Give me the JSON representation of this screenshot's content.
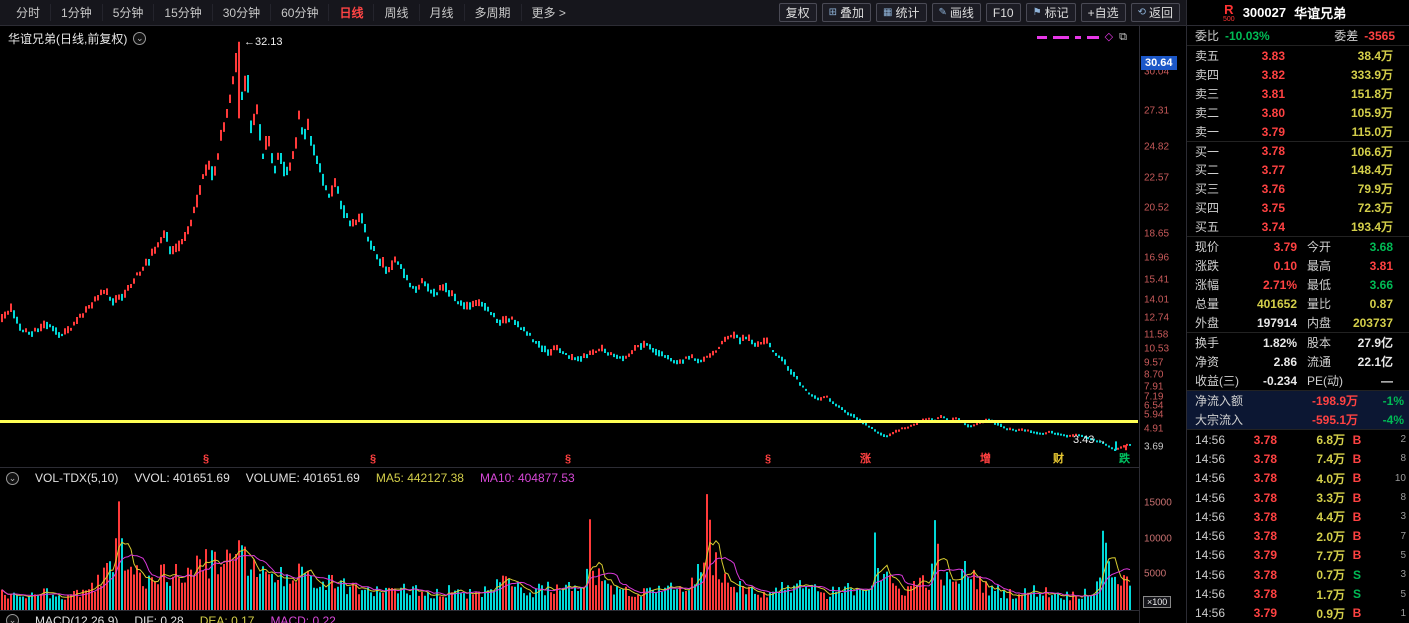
{
  "toolbar": {
    "periods": [
      {
        "key": "fenshi",
        "label": "分时"
      },
      {
        "key": "1min",
        "label": "1分钟"
      },
      {
        "key": "5min",
        "label": "5分钟"
      },
      {
        "key": "15min",
        "label": "15分钟"
      },
      {
        "key": "30min",
        "label": "30分钟"
      },
      {
        "key": "60min",
        "label": "60分钟"
      },
      {
        "key": "daily",
        "label": "日线"
      },
      {
        "key": "weekly",
        "label": "周线"
      },
      {
        "key": "monthly",
        "label": "月线"
      },
      {
        "key": "multi",
        "label": "多周期"
      },
      {
        "key": "more",
        "label": "更多 >"
      }
    ],
    "active_period": "日线",
    "right_buttons": [
      {
        "key": "fuquan",
        "label": "复权"
      },
      {
        "key": "overlay",
        "label": "叠加",
        "icon": "⊞",
        "icon_name": "overlay-icon"
      },
      {
        "key": "stats",
        "label": "统计",
        "icon": "▦",
        "icon_name": "stats-icon"
      },
      {
        "key": "drawline",
        "label": "画线",
        "icon": "✎",
        "icon_name": "draw-line-icon"
      },
      {
        "key": "f10",
        "label": "F10"
      },
      {
        "key": "mark",
        "label": "标记",
        "icon": "⚑",
        "icon_name": "mark-icon"
      },
      {
        "key": "add-watch",
        "label": "+自选"
      },
      {
        "key": "back",
        "label": "返回",
        "icon": "⟲",
        "icon_name": "back-icon"
      }
    ]
  },
  "icons": {
    "collapse": "⌄"
  },
  "chart": {
    "title": "华谊兄弟(日线,前复权)",
    "max_badge": "30.64",
    "peak_label": "←32.13",
    "low_label": "3.43",
    "low_arrow": "→",
    "deco_diamond": "◇",
    "deco_panel": "⧉",
    "volume_header": {
      "name": "VOL-TDX(5,10)",
      "vvol": "VVOL: 401651.69",
      "volume": "VOLUME: 401651.69",
      "ma5": "MA5: 442127.38",
      "ma10": "MA10: 404877.53"
    },
    "macd_row": {
      "name": "MACD(12,26,9)",
      "dif": "DIF: 0.28",
      "dea": "DEA: 0.17",
      "macd": "MACD: 0.22"
    },
    "volume_unit": "×100"
  },
  "colors": {
    "up": "#ff3a3a",
    "down": "#00d8d8",
    "ma5": "#d8cc30",
    "ma10": "#d838d8",
    "trendline": "#ffff55",
    "axis_label": "#c85a5a",
    "badge_blue": "#1b57c8",
    "buy": "#ff4040",
    "sell": "#00c060",
    "yellow": "#d4cf4a",
    "green": "#00bb55",
    "red": "#ff4242",
    "flow_bg": "#0c1733"
  },
  "chart_data": {
    "type": "candlestick",
    "symbol": "300027",
    "name": "华谊兄弟",
    "period": "日线",
    "adjust": "前复权",
    "y_axis": {
      "top": 32.6,
      "bottom": 3.3,
      "prev_close": 3.69,
      "max_badge": 30.64,
      "labels": [
        30.04,
        27.31,
        24.82,
        22.57,
        20.52,
        18.65,
        16.96,
        15.41,
        14.01,
        12.74,
        11.58,
        10.53,
        9.57,
        8.7,
        7.91,
        7.19,
        6.54,
        5.94,
        4.91,
        3.69
      ]
    },
    "annotations": {
      "peak": 32.13,
      "last_low": 3.43,
      "end_price": 3.79,
      "trendline_price": 5.45
    },
    "price_keypoints": [
      [
        0,
        12.6
      ],
      [
        0.01,
        13.4
      ],
      [
        0.018,
        12
      ],
      [
        0.028,
        11.6
      ],
      [
        0.04,
        12.4
      ],
      [
        0.052,
        11.5
      ],
      [
        0.062,
        12
      ],
      [
        0.072,
        12.9
      ],
      [
        0.082,
        13.8
      ],
      [
        0.092,
        14.7
      ],
      [
        0.1,
        13.9
      ],
      [
        0.11,
        14.4
      ],
      [
        0.12,
        15.7
      ],
      [
        0.13,
        16.6
      ],
      [
        0.138,
        17.8
      ],
      [
        0.146,
        18.6
      ],
      [
        0.152,
        17.3
      ],
      [
        0.16,
        18
      ],
      [
        0.168,
        19.4
      ],
      [
        0.176,
        21.6
      ],
      [
        0.184,
        23.9
      ],
      [
        0.189,
        22.4
      ],
      [
        0.195,
        25.3
      ],
      [
        0.202,
        27.9
      ],
      [
        0.207,
        30.3
      ],
      [
        0.211,
        32.13
      ],
      [
        0.214,
        28.4
      ],
      [
        0.218,
        30.1
      ],
      [
        0.222,
        25.8
      ],
      [
        0.227,
        27.5
      ],
      [
        0.232,
        24.1
      ],
      [
        0.237,
        25.7
      ],
      [
        0.242,
        23.1
      ],
      [
        0.247,
        24.4
      ],
      [
        0.252,
        22.7
      ],
      [
        0.257,
        23.8
      ],
      [
        0.262,
        25.3
      ],
      [
        0.264,
        26.8
      ],
      [
        0.268,
        25.6
      ],
      [
        0.272,
        26.4
      ],
      [
        0.277,
        24.5
      ],
      [
        0.283,
        23
      ],
      [
        0.29,
        21.4
      ],
      [
        0.296,
        22.3
      ],
      [
        0.302,
        20.6
      ],
      [
        0.31,
        19.2
      ],
      [
        0.318,
        20
      ],
      [
        0.326,
        18.3
      ],
      [
        0.334,
        17
      ],
      [
        0.342,
        16.1
      ],
      [
        0.35,
        16.9
      ],
      [
        0.358,
        15.7
      ],
      [
        0.366,
        14.7
      ],
      [
        0.374,
        15.3
      ],
      [
        0.382,
        14.3
      ],
      [
        0.392,
        15
      ],
      [
        0.402,
        14.1
      ],
      [
        0.412,
        13.6
      ],
      [
        0.422,
        14
      ],
      [
        0.432,
        13.2
      ],
      [
        0.442,
        12.4
      ],
      [
        0.452,
        12.8
      ],
      [
        0.46,
        12.1
      ],
      [
        0.468,
        11.5
      ],
      [
        0.476,
        10.8
      ],
      [
        0.484,
        10.3
      ],
      [
        0.492,
        10.7
      ],
      [
        0.5,
        10.1
      ],
      [
        0.51,
        9.8
      ],
      [
        0.52,
        10.2
      ],
      [
        0.53,
        10.6
      ],
      [
        0.54,
        10.2
      ],
      [
        0.55,
        9.8
      ],
      [
        0.56,
        10.5
      ],
      [
        0.57,
        10.9
      ],
      [
        0.58,
        10.4
      ],
      [
        0.59,
        9.9
      ],
      [
        0.6,
        9.6
      ],
      [
        0.61,
        10.1
      ],
      [
        0.618,
        9.7
      ],
      [
        0.626,
        10
      ],
      [
        0.634,
        10.6
      ],
      [
        0.641,
        11.2
      ],
      [
        0.648,
        11.6
      ],
      [
        0.654,
        11.1
      ],
      [
        0.66,
        11.5
      ],
      [
        0.668,
        10.8
      ],
      [
        0.676,
        11.2
      ],
      [
        0.684,
        10.4
      ],
      [
        0.692,
        9.7
      ],
      [
        0.7,
        8.9
      ],
      [
        0.708,
        8
      ],
      [
        0.716,
        7.4
      ],
      [
        0.724,
        7
      ],
      [
        0.73,
        7.3
      ],
      [
        0.736,
        6.8
      ],
      [
        0.744,
        6.3
      ],
      [
        0.752,
        5.9
      ],
      [
        0.76,
        5.5
      ],
      [
        0.768,
        5.1
      ],
      [
        0.776,
        4.7
      ],
      [
        0.782,
        4.4
      ],
      [
        0.788,
        4.6
      ],
      [
        0.796,
        4.9
      ],
      [
        0.804,
        5.1
      ],
      [
        0.812,
        5.4
      ],
      [
        0.82,
        5.7
      ],
      [
        0.826,
        5.5
      ],
      [
        0.832,
        5.8
      ],
      [
        0.838,
        5.5
      ],
      [
        0.846,
        5.7
      ],
      [
        0.852,
        5.3
      ],
      [
        0.858,
        5.1
      ],
      [
        0.866,
        5.4
      ],
      [
        0.874,
        5.6
      ],
      [
        0.88,
        5.3
      ],
      [
        0.888,
        5
      ],
      [
        0.896,
        4.8
      ],
      [
        0.904,
        4.9
      ],
      [
        0.912,
        4.7
      ],
      [
        0.92,
        4.6
      ],
      [
        0.928,
        4.7
      ],
      [
        0.936,
        4.5
      ],
      [
        0.944,
        4.4
      ],
      [
        0.952,
        4.5
      ],
      [
        0.96,
        4.3
      ],
      [
        0.968,
        4.1
      ],
      [
        0.976,
        3.9
      ],
      [
        0.982,
        3.55
      ],
      [
        0.986,
        3.43
      ],
      [
        0.991,
        3.65
      ],
      [
        0.995,
        3.79
      ]
    ],
    "volume": {
      "axis_values": [
        15000,
        10000,
        5000
      ],
      "unit": "×100",
      "keypoints": [
        [
          0,
          2200
        ],
        [
          0.02,
          1700
        ],
        [
          0.04,
          2500
        ],
        [
          0.06,
          1900
        ],
        [
          0.08,
          3100
        ],
        [
          0.095,
          5000
        ],
        [
          0.101,
          6500
        ],
        [
          0.105,
          15500
        ],
        [
          0.109,
          7000
        ],
        [
          0.118,
          5000
        ],
        [
          0.13,
          4100
        ],
        [
          0.15,
          5100
        ],
        [
          0.17,
          6100
        ],
        [
          0.19,
          6700
        ],
        [
          0.205,
          7500
        ],
        [
          0.212,
          8600
        ],
        [
          0.22,
          6900
        ],
        [
          0.235,
          5300
        ],
        [
          0.25,
          4500
        ],
        [
          0.265,
          5500
        ],
        [
          0.28,
          4300
        ],
        [
          0.3,
          3500
        ],
        [
          0.32,
          2950
        ],
        [
          0.34,
          2550
        ],
        [
          0.36,
          3150
        ],
        [
          0.38,
          2350
        ],
        [
          0.4,
          2750
        ],
        [
          0.42,
          2150
        ],
        [
          0.435,
          3300
        ],
        [
          0.442,
          3600
        ],
        [
          0.445,
          6800
        ],
        [
          0.449,
          3400
        ],
        [
          0.47,
          2550
        ],
        [
          0.49,
          3300
        ],
        [
          0.505,
          2950
        ],
        [
          0.517,
          3500
        ],
        [
          0.521,
          14000
        ],
        [
          0.525,
          5200
        ],
        [
          0.545,
          2950
        ],
        [
          0.56,
          2550
        ],
        [
          0.58,
          3300
        ],
        [
          0.6,
          2750
        ],
        [
          0.615,
          4700
        ],
        [
          0.622,
          5200
        ],
        [
          0.625,
          17200
        ],
        [
          0.629,
          7500
        ],
        [
          0.64,
          4500
        ],
        [
          0.66,
          2950
        ],
        [
          0.68,
          2350
        ],
        [
          0.7,
          3700
        ],
        [
          0.715,
          2950
        ],
        [
          0.73,
          2350
        ],
        [
          0.745,
          2750
        ],
        [
          0.76,
          3300
        ],
        [
          0.77,
          3600
        ],
        [
          0.773,
          11000
        ],
        [
          0.777,
          5000
        ],
        [
          0.79,
          3300
        ],
        [
          0.8,
          2750
        ],
        [
          0.815,
          4300
        ],
        [
          0.823,
          4200
        ],
        [
          0.826,
          12000
        ],
        [
          0.83,
          5500
        ],
        [
          0.84,
          3300
        ],
        [
          0.855,
          5700
        ],
        [
          0.87,
          3100
        ],
        [
          0.885,
          2550
        ],
        [
          0.9,
          2150
        ],
        [
          0.915,
          2750
        ],
        [
          0.93,
          2350
        ],
        [
          0.945,
          1950
        ],
        [
          0.96,
          2550
        ],
        [
          0.972,
          3400
        ],
        [
          0.975,
          13800
        ],
        [
          0.979,
          6000
        ],
        [
          0.99,
          4100
        ],
        [
          1,
          3700
        ]
      ]
    },
    "events": [
      {
        "glyph": "§",
        "color": "#ff4040",
        "x": 0.18
      },
      {
        "glyph": "§",
        "color": "#ff4040",
        "x": 0.327
      },
      {
        "glyph": "§",
        "color": "#ff4040",
        "x": 0.5
      },
      {
        "glyph": "§",
        "color": "#ff4040",
        "x": 0.677
      },
      {
        "glyph": "涨",
        "color": "#ff4040",
        "x": 0.761
      },
      {
        "glyph": "增",
        "color": "#ff4040",
        "x": 0.867
      },
      {
        "glyph": "财",
        "color": "#e8c832",
        "x": 0.932
      },
      {
        "glyph": "跌",
        "color": "#00c060",
        "x": 0.99
      }
    ]
  },
  "quote": {
    "flag": "R",
    "flag_sub": "500",
    "code": "300027",
    "name": "华谊兄弟",
    "weibi_label": "委比",
    "weibi": "-10.03%",
    "weicha_label": "委差",
    "weicha": "-3565",
    "asks": [
      [
        "卖五",
        "3.83",
        "38.4万"
      ],
      [
        "卖四",
        "3.82",
        "333.9万"
      ],
      [
        "卖三",
        "3.81",
        "151.8万"
      ],
      [
        "卖二",
        "3.80",
        "105.9万"
      ],
      [
        "卖一",
        "3.79",
        "115.0万"
      ]
    ],
    "bids": [
      [
        "买一",
        "3.78",
        "106.6万"
      ],
      [
        "买二",
        "3.77",
        "148.4万"
      ],
      [
        "买三",
        "3.76",
        "79.9万"
      ],
      [
        "买四",
        "3.75",
        "72.3万"
      ],
      [
        "买五",
        "3.74",
        "193.4万"
      ]
    ],
    "stats": [
      {
        "l1": "现价",
        "v1": "3.79",
        "c1": "red",
        "l2": "今开",
        "v2": "3.68",
        "c2": "green"
      },
      {
        "l1": "涨跌",
        "v1": "0.10",
        "c1": "red",
        "l2": "最高",
        "v2": "3.81",
        "c2": "red"
      },
      {
        "l1": "涨幅",
        "v1": "2.71%",
        "c1": "red",
        "l2": "最低",
        "v2": "3.66",
        "c2": "green"
      },
      {
        "l1": "总量",
        "v1": "401652",
        "c1": "yellow",
        "l2": "量比",
        "v2": "0.87",
        "c2": "yellow"
      },
      {
        "l1": "外盘",
        "v1": "197914",
        "c1": "white",
        "l2": "内盘",
        "v2": "203737",
        "c2": "yellow"
      },
      {
        "l1": "换手",
        "v1": "1.82%",
        "c1": "white",
        "l2": "股本",
        "v2": "27.9亿",
        "c2": "white"
      },
      {
        "l1": "净资",
        "v1": "2.86",
        "c1": "white",
        "l2": "流通",
        "v2": "22.1亿",
        "c2": "white"
      },
      {
        "l1": "收益(三)",
        "v1": "-0.234",
        "c1": "white",
        "l2": "PE(动)",
        "v2": "—",
        "c2": "white"
      }
    ],
    "flows": [
      {
        "label": "净流入额",
        "value": "-198.9万",
        "vc": "red",
        "pct": "-1%",
        "pc": "green"
      },
      {
        "label": "大宗流入",
        "value": "-595.1万",
        "vc": "red",
        "pct": "-4%",
        "pc": "green"
      }
    ],
    "ticks": [
      {
        "time": "14:56",
        "price": "3.78",
        "vol": "6.8万",
        "side": "B",
        "n": "2"
      },
      {
        "time": "14:56",
        "price": "3.78",
        "vol": "7.4万",
        "side": "B",
        "n": "8"
      },
      {
        "time": "14:56",
        "price": "3.78",
        "vol": "4.0万",
        "side": "B",
        "n": "10"
      },
      {
        "time": "14:56",
        "price": "3.78",
        "vol": "3.3万",
        "side": "B",
        "n": "8"
      },
      {
        "time": "14:56",
        "price": "3.78",
        "vol": "4.4万",
        "side": "B",
        "n": "3"
      },
      {
        "time": "14:56",
        "price": "3.78",
        "vol": "2.0万",
        "side": "B",
        "n": "7"
      },
      {
        "time": "14:56",
        "price": "3.79",
        "vol": "7.7万",
        "side": "B",
        "n": "5"
      },
      {
        "time": "14:56",
        "price": "3.78",
        "vol": "0.7万",
        "side": "S",
        "n": "3"
      },
      {
        "time": "14:56",
        "price": "3.78",
        "vol": "1.7万",
        "side": "S",
        "n": "5"
      },
      {
        "time": "14:56",
        "price": "3.79",
        "vol": "0.9万",
        "side": "B",
        "n": "1"
      }
    ]
  }
}
